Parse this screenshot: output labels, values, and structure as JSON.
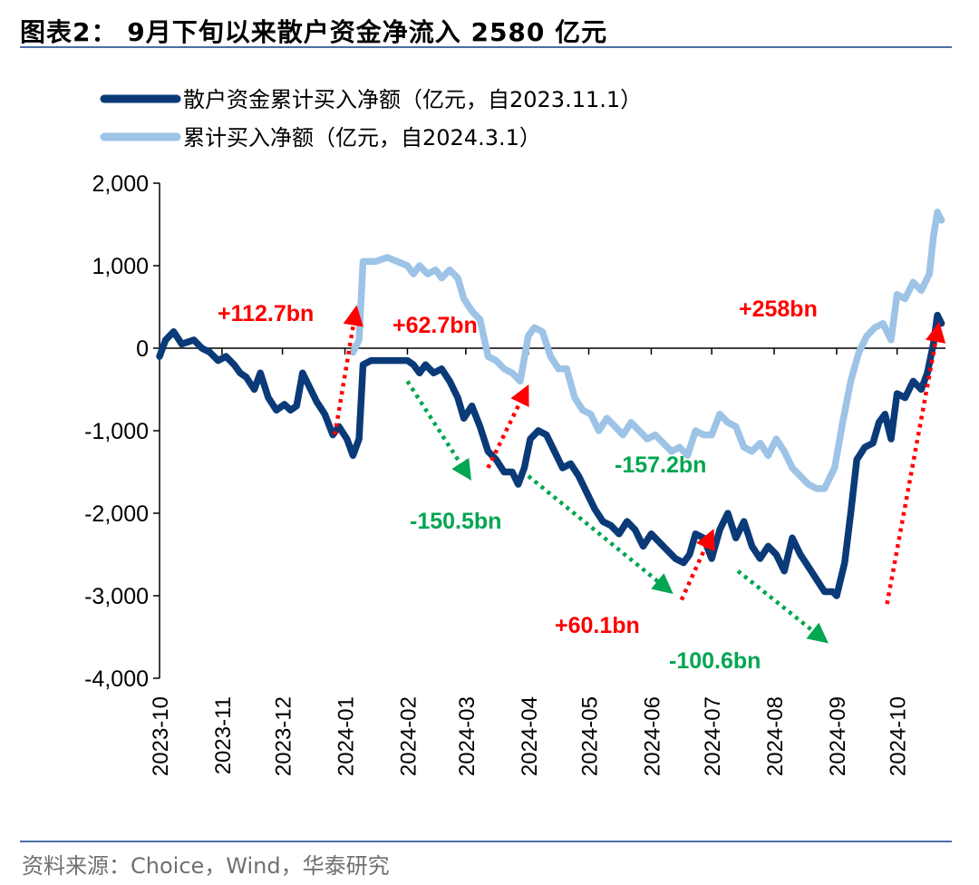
{
  "header": {
    "title": "图表2： 9月下旬以来散户资金净流入 2580 亿元"
  },
  "footer": {
    "source": "资料来源：Choice，Wind，华泰研究"
  },
  "colors": {
    "series1": "#0b3a78",
    "series2": "#9dc3e6",
    "up": "#ff0000",
    "down": "#00a651",
    "rule": "#4a6fa5"
  },
  "chart_data": {
    "type": "line",
    "ylim": [
      -4000,
      2000
    ],
    "yticks": [
      2000,
      1000,
      0,
      -1000,
      -2000,
      -3000,
      -4000
    ],
    "ytick_labels": [
      "2,000",
      "1,000",
      "0",
      "-1,000",
      "-2,000",
      "-3,000",
      "-4,000"
    ],
    "xlim": [
      "2023-10-01",
      "2024-10-25"
    ],
    "xticks": [
      "2023-10-01",
      "2023-11-01",
      "2023-12-01",
      "2024-01-01",
      "2024-02-01",
      "2024-03-01",
      "2024-04-01",
      "2024-05-01",
      "2024-06-01",
      "2024-07-01",
      "2024-08-01",
      "2024-09-01",
      "2024-10-01"
    ],
    "xtick_labels": [
      "2023-10",
      "2023-11",
      "2023-12",
      "2024-01",
      "2024-02",
      "2024-03",
      "2024-04",
      "2024-05",
      "2024-06",
      "2024-07",
      "2024-08",
      "2024-09",
      "2024-10"
    ],
    "legend_position": "top-left",
    "series": [
      {
        "name": "散户资金累计买入净额（亿元，自2023.11.1）",
        "points": [
          [
            "2023-10-01",
            -100
          ],
          [
            "2023-10-04",
            100
          ],
          [
            "2023-10-08",
            200
          ],
          [
            "2023-10-12",
            50
          ],
          [
            "2023-10-18",
            100
          ],
          [
            "2023-10-22",
            0
          ],
          [
            "2023-10-26",
            -50
          ],
          [
            "2023-10-30",
            -150
          ],
          [
            "2023-11-03",
            -100
          ],
          [
            "2023-11-07",
            -200
          ],
          [
            "2023-11-10",
            -300
          ],
          [
            "2023-11-13",
            -350
          ],
          [
            "2023-11-17",
            -500
          ],
          [
            "2023-11-20",
            -300
          ],
          [
            "2023-11-24",
            -600
          ],
          [
            "2023-11-28",
            -750
          ],
          [
            "2023-12-02",
            -680
          ],
          [
            "2023-12-05",
            -750
          ],
          [
            "2023-12-08",
            -700
          ],
          [
            "2023-12-11",
            -300
          ],
          [
            "2023-12-14",
            -450
          ],
          [
            "2023-12-18",
            -650
          ],
          [
            "2023-12-22",
            -800
          ],
          [
            "2023-12-26",
            -1050
          ],
          [
            "2023-12-29",
            -950
          ],
          [
            "2024-01-02",
            -1100
          ],
          [
            "2024-01-05",
            -1300
          ],
          [
            "2024-01-08",
            -1100
          ],
          [
            "2024-01-10",
            -200
          ],
          [
            "2024-01-14",
            -150
          ],
          [
            "2024-01-20",
            -150
          ],
          [
            "2024-01-26",
            -150
          ],
          [
            "2024-02-01",
            -150
          ],
          [
            "2024-02-04",
            -200
          ],
          [
            "2024-02-07",
            -300
          ],
          [
            "2024-02-10",
            -200
          ],
          [
            "2024-02-14",
            -300
          ],
          [
            "2024-02-18",
            -250
          ],
          [
            "2024-02-22",
            -400
          ],
          [
            "2024-02-26",
            -600
          ],
          [
            "2024-02-29",
            -850
          ],
          [
            "2024-03-04",
            -700
          ],
          [
            "2024-03-08",
            -950
          ],
          [
            "2024-03-12",
            -1250
          ],
          [
            "2024-03-16",
            -1350
          ],
          [
            "2024-03-20",
            -1500
          ],
          [
            "2024-03-24",
            -1500
          ],
          [
            "2024-03-27",
            -1650
          ],
          [
            "2024-03-30",
            -1450
          ],
          [
            "2024-04-02",
            -1100
          ],
          [
            "2024-04-06",
            -1000
          ],
          [
            "2024-04-10",
            -1050
          ],
          [
            "2024-04-14",
            -1250
          ],
          [
            "2024-04-18",
            -1450
          ],
          [
            "2024-04-22",
            -1400
          ],
          [
            "2024-04-26",
            -1550
          ],
          [
            "2024-04-30",
            -1750
          ],
          [
            "2024-05-04",
            -1950
          ],
          [
            "2024-05-08",
            -2100
          ],
          [
            "2024-05-12",
            -2150
          ],
          [
            "2024-05-16",
            -2250
          ],
          [
            "2024-05-20",
            -2100
          ],
          [
            "2024-05-24",
            -2200
          ],
          [
            "2024-05-28",
            -2400
          ],
          [
            "2024-06-01",
            -2250
          ],
          [
            "2024-06-05",
            -2350
          ],
          [
            "2024-06-09",
            -2450
          ],
          [
            "2024-06-13",
            -2550
          ],
          [
            "2024-06-17",
            -2600
          ],
          [
            "2024-06-20",
            -2500
          ],
          [
            "2024-06-23",
            -2250
          ],
          [
            "2024-06-27",
            -2300
          ],
          [
            "2024-07-01",
            -2550
          ],
          [
            "2024-07-05",
            -2200
          ],
          [
            "2024-07-09",
            -2000
          ],
          [
            "2024-07-13",
            -2300
          ],
          [
            "2024-07-17",
            -2100
          ],
          [
            "2024-07-21",
            -2400
          ],
          [
            "2024-07-25",
            -2550
          ],
          [
            "2024-07-29",
            -2400
          ],
          [
            "2024-08-02",
            -2500
          ],
          [
            "2024-08-06",
            -2700
          ],
          [
            "2024-08-10",
            -2300
          ],
          [
            "2024-08-14",
            -2500
          ],
          [
            "2024-08-18",
            -2650
          ],
          [
            "2024-08-22",
            -2800
          ],
          [
            "2024-08-26",
            -2950
          ],
          [
            "2024-08-30",
            -2950
          ],
          [
            "2024-09-01",
            -3000
          ],
          [
            "2024-09-05",
            -2600
          ],
          [
            "2024-09-08",
            -2000
          ],
          [
            "2024-09-11",
            -1350
          ],
          [
            "2024-09-15",
            -1200
          ],
          [
            "2024-09-19",
            -1150
          ],
          [
            "2024-09-22",
            -900
          ],
          [
            "2024-09-25",
            -800
          ],
          [
            "2024-09-28",
            -1100
          ],
          [
            "2024-10-01",
            -550
          ],
          [
            "2024-10-05",
            -600
          ],
          [
            "2024-10-09",
            -400
          ],
          [
            "2024-10-13",
            -500
          ],
          [
            "2024-10-16",
            -300
          ],
          [
            "2024-10-19",
            50
          ],
          [
            "2024-10-21",
            400
          ],
          [
            "2024-10-23",
            300
          ]
        ]
      },
      {
        "name": "累计买入净额（亿元，自2024.3.1）",
        "points": [
          [
            "2024-01-05",
            -50
          ],
          [
            "2024-01-08",
            100
          ],
          [
            "2024-01-10",
            1050
          ],
          [
            "2024-01-16",
            1050
          ],
          [
            "2024-01-22",
            1100
          ],
          [
            "2024-01-27",
            1050
          ],
          [
            "2024-02-01",
            1000
          ],
          [
            "2024-02-04",
            900
          ],
          [
            "2024-02-07",
            1000
          ],
          [
            "2024-02-11",
            900
          ],
          [
            "2024-02-15",
            950
          ],
          [
            "2024-02-18",
            850
          ],
          [
            "2024-02-22",
            950
          ],
          [
            "2024-02-26",
            850
          ],
          [
            "2024-02-29",
            600
          ],
          [
            "2024-03-04",
            450
          ],
          [
            "2024-03-08",
            350
          ],
          [
            "2024-03-12",
            -100
          ],
          [
            "2024-03-16",
            -150
          ],
          [
            "2024-03-20",
            -250
          ],
          [
            "2024-03-24",
            -300
          ],
          [
            "2024-03-28",
            -400
          ],
          [
            "2024-04-01",
            150
          ],
          [
            "2024-04-04",
            250
          ],
          [
            "2024-04-08",
            200
          ],
          [
            "2024-04-12",
            -100
          ],
          [
            "2024-04-16",
            -250
          ],
          [
            "2024-04-20",
            -250
          ],
          [
            "2024-04-24",
            -600
          ],
          [
            "2024-04-28",
            -750
          ],
          [
            "2024-05-02",
            -800
          ],
          [
            "2024-05-06",
            -1000
          ],
          [
            "2024-05-10",
            -850
          ],
          [
            "2024-05-14",
            -950
          ],
          [
            "2024-05-18",
            -1050
          ],
          [
            "2024-05-22",
            -900
          ],
          [
            "2024-05-26",
            -1000
          ],
          [
            "2024-05-30",
            -1100
          ],
          [
            "2024-06-03",
            -1050
          ],
          [
            "2024-06-07",
            -1150
          ],
          [
            "2024-06-11",
            -1250
          ],
          [
            "2024-06-15",
            -1200
          ],
          [
            "2024-06-19",
            -1300
          ],
          [
            "2024-06-23",
            -1000
          ],
          [
            "2024-06-27",
            -1050
          ],
          [
            "2024-07-01",
            -1050
          ],
          [
            "2024-07-05",
            -800
          ],
          [
            "2024-07-09",
            -900
          ],
          [
            "2024-07-13",
            -950
          ],
          [
            "2024-07-17",
            -1200
          ],
          [
            "2024-07-21",
            -1250
          ],
          [
            "2024-07-25",
            -1150
          ],
          [
            "2024-07-29",
            -1300
          ],
          [
            "2024-08-02",
            -1100
          ],
          [
            "2024-08-06",
            -1250
          ],
          [
            "2024-08-10",
            -1450
          ],
          [
            "2024-08-14",
            -1550
          ],
          [
            "2024-08-18",
            -1650
          ],
          [
            "2024-08-22",
            -1700
          ],
          [
            "2024-08-26",
            -1700
          ],
          [
            "2024-08-31",
            -1450
          ],
          [
            "2024-09-04",
            -900
          ],
          [
            "2024-09-08",
            -400
          ],
          [
            "2024-09-12",
            -50
          ],
          [
            "2024-09-16",
            150
          ],
          [
            "2024-09-20",
            250
          ],
          [
            "2024-09-24",
            300
          ],
          [
            "2024-09-28",
            100
          ],
          [
            "2024-10-01",
            650
          ],
          [
            "2024-10-05",
            600
          ],
          [
            "2024-10-09",
            800
          ],
          [
            "2024-10-13",
            700
          ],
          [
            "2024-10-17",
            900
          ],
          [
            "2024-10-19",
            1350
          ],
          [
            "2024-10-21",
            1650
          ],
          [
            "2024-10-23",
            1550
          ]
        ]
      }
    ],
    "annotations": [
      {
        "text": "+112.7bn",
        "color": "red",
        "from": [
          "2023-12-27",
          -1050
        ],
        "to": [
          "2024-01-06",
          400
        ]
      },
      {
        "text": "+62.7bn",
        "color": "red",
        "from": [
          "2024-03-12",
          -1450
        ],
        "to": [
          "2024-03-30",
          -550
        ]
      },
      {
        "text": "-150.5bn",
        "color": "green",
        "from": [
          "2024-02-01",
          -400
        ],
        "to": [
          "2024-03-01",
          -1500
        ]
      },
      {
        "text": "-157.2bn",
        "color": "green",
        "from": [
          "2024-04-01",
          -1550
        ],
        "to": [
          "2024-06-08",
          -2900
        ]
      },
      {
        "text": "+60.1bn",
        "color": "red",
        "from": [
          "2024-06-16",
          -3050
        ],
        "to": [
          "2024-06-30",
          -2300
        ]
      },
      {
        "text": "-100.6bn",
        "color": "green",
        "from": [
          "2024-07-14",
          -2700
        ],
        "to": [
          "2024-08-24",
          -3500
        ]
      },
      {
        "text": "+258bn",
        "color": "red",
        "from": [
          "2024-09-26",
          -3100
        ],
        "to": [
          "2024-10-21",
          200
        ]
      }
    ]
  }
}
